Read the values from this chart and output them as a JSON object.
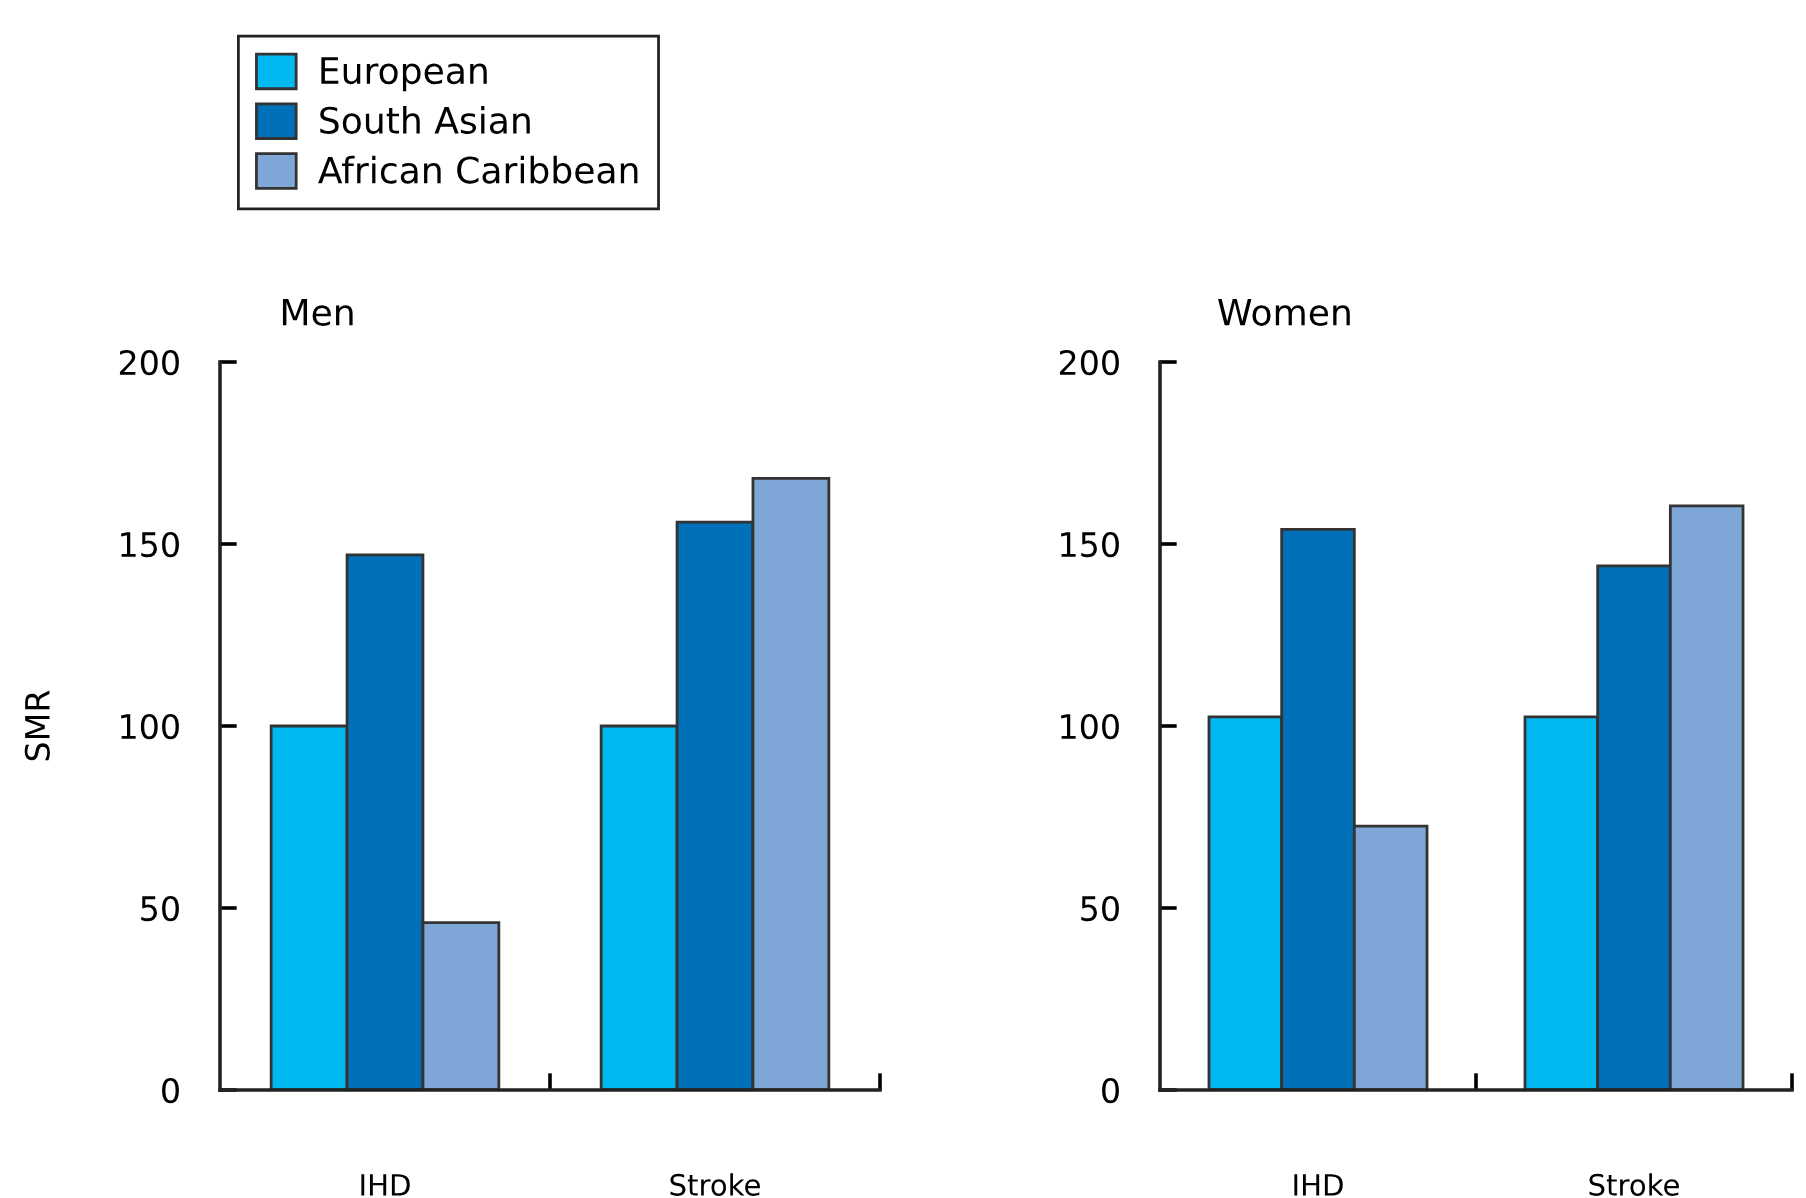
{
  "chart_data": [
    {
      "type": "bar",
      "title": "Men",
      "ylabel": "SMR",
      "categories": [
        "IHD",
        "Stroke"
      ],
      "ylim": [
        0,
        200
      ],
      "yticks": [
        0,
        50,
        100,
        150,
        200
      ],
      "grid": false,
      "legend": "top left",
      "series": [
        {
          "name": "European",
          "color": "#00b9f0",
          "values": [
            100,
            100
          ]
        },
        {
          "name": "South Asian",
          "color": "#0070b8",
          "values": [
            147,
            156
          ]
        },
        {
          "name": "African Caribbean",
          "color": "#7ea7d8",
          "values": [
            46,
            168
          ]
        }
      ]
    },
    {
      "type": "bar",
      "title": "Women",
      "categories": [
        "IHD",
        "Stroke"
      ],
      "ylim": [
        0,
        200
      ],
      "yticks": [
        0,
        50,
        100,
        150,
        200
      ],
      "grid": false,
      "series": [
        {
          "color": "#00b9f0",
          "values": [
            102.5,
            102.5
          ]
        },
        {
          "color": "#0070b8",
          "values": [
            154,
            144
          ]
        },
        {
          "color": "#7ea7d8",
          "values": [
            72.5,
            160.5
          ]
        }
      ]
    }
  ]
}
